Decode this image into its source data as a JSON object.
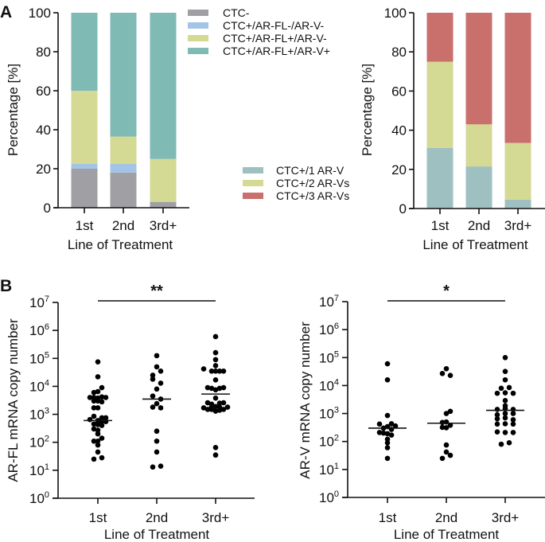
{
  "panel_labels": {
    "a": "A",
    "b": "B"
  },
  "chart_data": [
    {
      "id": "a-left",
      "type": "bar",
      "stacked": true,
      "title": "",
      "xlabel": "Line of Treatment",
      "ylabel": "Percentage [%]",
      "ylim": [
        0,
        100
      ],
      "yticks": [
        0,
        20,
        40,
        60,
        80,
        100
      ],
      "categories": [
        "1st",
        "2nd",
        "3rd+"
      ],
      "legend_position": "top-right",
      "series": [
        {
          "name": "CTC-",
          "color": "#a09fa4",
          "values": [
            20,
            18,
            3
          ]
        },
        {
          "name": "CTC+/AR-FL-/AR-V-",
          "color": "#a3c4e6",
          "values": [
            2.5,
            4.5,
            0
          ]
        },
        {
          "name": "CTC+/AR-FL+/AR-V-",
          "color": "#d4d994",
          "values": [
            37.5,
            14,
            22
          ]
        },
        {
          "name": "CTC+/AR-FL+/AR-V+",
          "color": "#7fbab4",
          "values": [
            40,
            63.5,
            75
          ]
        }
      ]
    },
    {
      "id": "a-right",
      "type": "bar",
      "stacked": true,
      "title": "",
      "xlabel": "Line of Treatment",
      "ylabel": "Percentage [%]",
      "ylim": [
        0,
        100
      ],
      "yticks": [
        0,
        20,
        40,
        60,
        80,
        100
      ],
      "categories": [
        "1st",
        "2nd",
        "3rd+"
      ],
      "legend_position": "left",
      "series": [
        {
          "name": "CTC+/1 AR-V",
          "color": "#9fc0c0",
          "values": [
            31,
            21.5,
            4.5
          ]
        },
        {
          "name": "CTC+/2 AR-Vs",
          "color": "#d4d994",
          "values": [
            44,
            21.5,
            29
          ]
        },
        {
          "name": "CTC+/3 AR-Vs",
          "color": "#c9706c",
          "values": [
            25,
            57,
            66.5
          ]
        }
      ]
    },
    {
      "id": "b-left",
      "type": "scatter",
      "title": "",
      "xlabel": "Line of Treatment",
      "ylabel": "AR-FL mRNA copy number",
      "yscale": "log",
      "ylim": [
        1,
        10000000
      ],
      "ytick_exponents": [
        0,
        1,
        2,
        3,
        4,
        5,
        6,
        7
      ],
      "categories": [
        "1st",
        "2nd",
        "3rd+"
      ],
      "significance": {
        "label": "**",
        "from": "1st",
        "to": "3rd+"
      },
      "medians": [
        600,
        3500,
        5300
      ],
      "groups": [
        {
          "name": "1st",
          "points": [
            [
              0,
              75000
            ],
            [
              0,
              22000
            ],
            [
              0.5,
              9000
            ],
            [
              0,
              6500
            ],
            [
              -0.5,
              6000
            ],
            [
              0.5,
              4200
            ],
            [
              -1,
              4000
            ],
            [
              -0.5,
              4000
            ],
            [
              0,
              3800
            ],
            [
              1,
              4000
            ],
            [
              -0.5,
              3000
            ],
            [
              0,
              3000
            ],
            [
              0.5,
              2800
            ],
            [
              -0.5,
              1700
            ],
            [
              0,
              1700
            ],
            [
              -0.5,
              850
            ],
            [
              0.5,
              750
            ],
            [
              1,
              750
            ],
            [
              -1,
              650
            ],
            [
              0,
              600
            ],
            [
              1,
              550
            ],
            [
              0.5,
              550
            ],
            [
              -0.5,
              450
            ],
            [
              0,
              430
            ],
            [
              -0.5,
              300
            ],
            [
              0,
              270
            ],
            [
              0.5,
              400
            ],
            [
              0,
              200
            ],
            [
              -0.5,
              110
            ],
            [
              0,
              110
            ],
            [
              0.5,
              140
            ],
            [
              0,
              80
            ],
            [
              0,
              45
            ],
            [
              -0.5,
              25
            ],
            [
              0.5,
              28
            ]
          ]
        },
        {
          "name": "2nd",
          "points": [
            [
              0,
              125000
            ],
            [
              0,
              50000
            ],
            [
              0.5,
              35000
            ],
            [
              -0.5,
              25000
            ],
            [
              -0.5,
              18000
            ],
            [
              0.5,
              13000
            ],
            [
              0,
              8000
            ],
            [
              -0.5,
              4500
            ],
            [
              0.5,
              3500
            ],
            [
              0,
              2400
            ],
            [
              -0.5,
              1800
            ],
            [
              0.5,
              1700
            ],
            [
              0,
              250
            ],
            [
              0,
              110
            ],
            [
              0,
              45
            ],
            [
              -0.5,
              13
            ],
            [
              0.5,
              14
            ]
          ]
        },
        {
          "name": "3rd+",
          "points": [
            [
              0,
              600000
            ],
            [
              0,
              160000
            ],
            [
              0,
              90000
            ],
            [
              0,
              55000
            ],
            [
              -1.5,
              42000
            ],
            [
              -0.5,
              35000
            ],
            [
              0,
              35000
            ],
            [
              1,
              35000
            ],
            [
              0.5,
              35000
            ],
            [
              0,
              17000
            ],
            [
              -1,
              9000
            ],
            [
              -0.5,
              8500
            ],
            [
              0.5,
              8500
            ],
            [
              1,
              9000
            ],
            [
              0,
              7500
            ],
            [
              0,
              3800
            ],
            [
              -1,
              2600
            ],
            [
              -0.5,
              2300
            ],
            [
              0.5,
              2500
            ],
            [
              1,
              2600
            ],
            [
              -0.5,
              1800
            ],
            [
              0,
              1900
            ],
            [
              0.5,
              1800
            ],
            [
              1.5,
              1800
            ],
            [
              -1.5,
              1700
            ],
            [
              -1,
              1500
            ],
            [
              -0.5,
              1500
            ],
            [
              0,
              1300
            ],
            [
              0.5,
              1400
            ],
            [
              1,
              1500
            ],
            [
              0,
              65
            ],
            [
              0,
              35
            ]
          ]
        }
      ]
    },
    {
      "id": "b-right",
      "type": "scatter",
      "title": "",
      "xlabel": "Line of Treatment",
      "ylabel": "AR-V mRNA copy number",
      "yscale": "log",
      "ylim": [
        1,
        10000000
      ],
      "ytick_exponents": [
        0,
        1,
        2,
        3,
        4,
        5,
        6,
        7
      ],
      "categories": [
        "1st",
        "2nd",
        "3rd+"
      ],
      "significance": {
        "label": "*",
        "from": "1st",
        "to": "3rd+"
      },
      "medians": [
        300,
        450,
        1300
      ],
      "groups": [
        {
          "name": "1st",
          "points": [
            [
              0,
              60000
            ],
            [
              0,
              16000
            ],
            [
              0,
              850
            ],
            [
              -1,
              420
            ],
            [
              0.5,
              430
            ],
            [
              1,
              360
            ],
            [
              -0.5,
              300
            ],
            [
              0,
              340
            ],
            [
              0.5,
              270
            ],
            [
              -1,
              210
            ],
            [
              -0.5,
              200
            ],
            [
              0,
              190
            ],
            [
              0.5,
              170
            ],
            [
              0,
              120
            ],
            [
              0,
              90
            ],
            [
              0,
              60
            ],
            [
              0,
              25
            ]
          ]
        },
        {
          "name": "2nd",
          "points": [
            [
              0,
              40000
            ],
            [
              -0.5,
              27000
            ],
            [
              0.5,
              23000
            ],
            [
              0,
              1000
            ],
            [
              0.5,
              1200
            ],
            [
              -0.5,
              480
            ],
            [
              0,
              500
            ],
            [
              0.5,
              380
            ],
            [
              -0.5,
              320
            ],
            [
              0,
              310
            ],
            [
              0,
              75
            ],
            [
              0,
              42
            ],
            [
              -0.5,
              25
            ],
            [
              0.5,
              32
            ]
          ]
        },
        {
          "name": "3rd+",
          "points": [
            [
              0,
              100000
            ],
            [
              0,
              32000
            ],
            [
              0,
              16000
            ],
            [
              -0.5,
              8000
            ],
            [
              0.5,
              8500
            ],
            [
              -1,
              5300
            ],
            [
              0,
              5500
            ],
            [
              1,
              5300
            ],
            [
              0,
              2900
            ],
            [
              0,
              1900
            ],
            [
              -1,
              1400
            ],
            [
              0,
              1500
            ],
            [
              1,
              1400
            ],
            [
              -1,
              900
            ],
            [
              0,
              1000
            ],
            [
              1,
              1000
            ],
            [
              -1,
              650
            ],
            [
              0,
              700
            ],
            [
              1,
              600
            ],
            [
              -1,
              420
            ],
            [
              0,
              430
            ],
            [
              1,
              420
            ],
            [
              -1,
              220
            ],
            [
              0,
              210
            ],
            [
              1,
              210
            ],
            [
              -0.5,
              80
            ],
            [
              0.5,
              90
            ]
          ]
        }
      ]
    }
  ]
}
